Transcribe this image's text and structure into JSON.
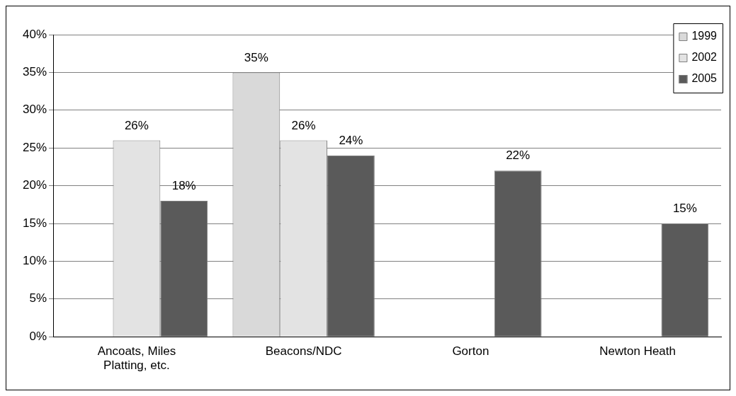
{
  "chart_data": {
    "type": "bar",
    "categories": [
      "Ancoats, Miles Platting, etc.",
      "Beacons/NDC",
      "Gorton",
      "Newton Heath"
    ],
    "series": [
      {
        "name": "1999",
        "color": "#d9d9d9",
        "values": [
          null,
          35,
          null,
          null
        ],
        "value_labels": [
          null,
          "35%",
          null,
          null
        ]
      },
      {
        "name": "2002",
        "color": "#e3e3e3",
        "values": [
          26,
          26,
          null,
          null
        ],
        "value_labels": [
          "26%",
          "26%",
          null,
          null
        ]
      },
      {
        "name": "2005",
        "color": "#5a5a5a",
        "values": [
          18,
          24,
          22,
          15
        ],
        "value_labels": [
          "18%",
          "24%",
          "22%",
          "15%"
        ]
      }
    ],
    "ylim": [
      0,
      40
    ],
    "yticks": [
      {
        "value": 0,
        "label": "0%"
      },
      {
        "value": 5,
        "label": "5%"
      },
      {
        "value": 10,
        "label": "10%"
      },
      {
        "value": 15,
        "label": "15%"
      },
      {
        "value": 20,
        "label": "20%"
      },
      {
        "value": 25,
        "label": "25%"
      },
      {
        "value": 30,
        "label": "30%"
      },
      {
        "value": 35,
        "label": "35%"
      },
      {
        "value": 40,
        "label": "40%"
      }
    ],
    "grid": "y",
    "legend": "top right"
  }
}
